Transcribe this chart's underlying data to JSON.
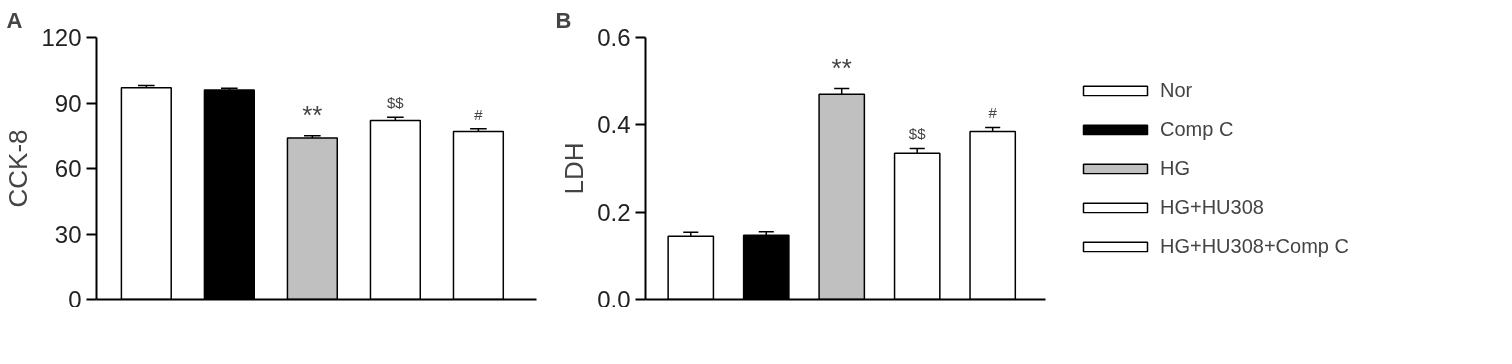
{
  "chart_data": [
    {
      "type": "bar",
      "title": "A",
      "ylabel": "CCK-8",
      "categories": [
        null,
        null,
        null,
        null,
        null
      ],
      "ylim": [
        0,
        120
      ],
      "yticks": [
        0,
        30,
        60,
        90,
        120
      ],
      "grid": false,
      "series": [
        {
          "color": "#ffffff",
          "values": [
            97,
            null,
            null,
            null,
            null
          ],
          "errors": [
            1.0,
            null,
            null,
            null,
            null
          ]
        },
        {
          "color": "#000000",
          "values": [
            null,
            96,
            null,
            null,
            null
          ],
          "errors": [
            null,
            0.7,
            null,
            null,
            null
          ]
        },
        {
          "color": "#c0c0c0",
          "values": [
            null,
            null,
            74,
            null,
            null
          ],
          "errors": [
            null,
            null,
            1.0,
            null,
            null
          ]
        },
        {
          "color": "#ffffff",
          "values": [
            null,
            null,
            null,
            82,
            null
          ],
          "errors": [
            null,
            null,
            null,
            1.5,
            null
          ]
        },
        {
          "color": "#ffffff",
          "values": [
            null,
            null,
            null,
            null,
            77
          ],
          "errors": [
            null,
            null,
            null,
            null,
            1.2
          ]
        }
      ],
      "annotations": [
        "**",
        "$$",
        "#"
      ]
    },
    {
      "type": "bar",
      "title": "B",
      "ylabel": "LDH",
      "categories": [
        null,
        null,
        null,
        null,
        null
      ],
      "ylim": [
        0,
        0.6
      ],
      "yticks": [
        {
          "value": 0,
          "label": "0.0"
        },
        0.2,
        0.4,
        0.6
      ],
      "grid": false,
      "legend": "right",
      "series": [
        {
          "name": "Nor",
          "color": "#ffffff",
          "values": [
            0.145,
            null,
            null,
            null,
            null
          ],
          "errors": [
            0.009,
            null,
            null,
            null,
            null
          ]
        },
        {
          "name": "Comp C",
          "color": "#000000",
          "values": [
            null,
            0.147,
            null,
            null,
            null
          ],
          "errors": [
            null,
            0.008,
            null,
            null,
            null
          ]
        },
        {
          "name": "HG",
          "color": "#c0c0c0",
          "values": [
            null,
            null,
            0.47,
            null,
            null
          ],
          "errors": [
            null,
            null,
            0.013,
            null,
            null
          ]
        },
        {
          "name": "HG+HU308",
          "color": "#ffffff",
          "values": [
            null,
            null,
            null,
            0.335,
            null
          ],
          "errors": [
            null,
            null,
            null,
            0.011,
            null
          ]
        },
        {
          "name": "HG+HU308+Comp C",
          "color": "#ffffff",
          "values": [
            null,
            null,
            null,
            null,
            0.385
          ],
          "errors": [
            null,
            null,
            null,
            null,
            0.009
          ]
        }
      ],
      "annotations": [
        "**",
        "$$",
        "#"
      ]
    }
  ]
}
